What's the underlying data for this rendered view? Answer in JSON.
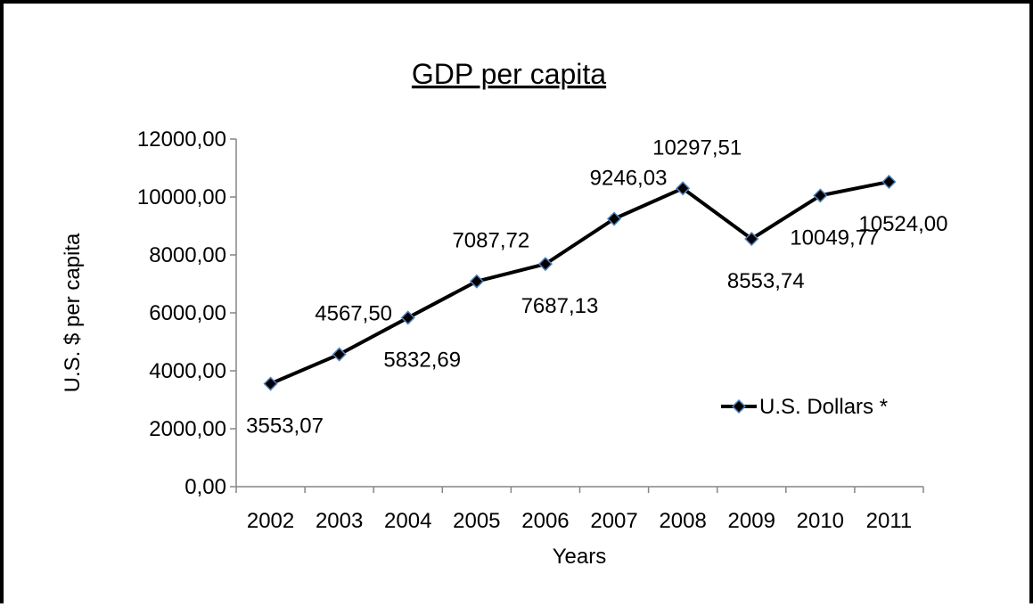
{
  "chart_data": {
    "type": "line",
    "title": "GDP per capita",
    "xlabel": "Years",
    "ylabel": "U.S. $ per capita",
    "categories": [
      "2002",
      "2003",
      "2004",
      "2005",
      "2006",
      "2007",
      "2008",
      "2009",
      "2010",
      "2011"
    ],
    "series": [
      {
        "name": "U.S. Dollars *",
        "values": [
          3553.07,
          4567.5,
          5832.69,
          7087.72,
          7687.13,
          9246.03,
          10297.51,
          8553.74,
          10049.77,
          10524.0
        ],
        "labels": [
          "3553,07",
          "4567,50",
          "5832,69",
          "7087,72",
          "7687,13",
          "9246,03",
          "10297,51",
          "8553,74",
          "10049,77",
          "10524,00"
        ],
        "line_color": "#000000",
        "marker_color": "#000000",
        "marker_edge_color": "#4f81bd",
        "marker": "diamond"
      }
    ],
    "ylim": [
      0,
      12000
    ],
    "yticks": [
      0,
      2000,
      4000,
      6000,
      8000,
      10000,
      12000
    ],
    "ytick_labels": [
      "0,00",
      "2000,00",
      "4000,00",
      "6000,00",
      "8000,00",
      "10000,00",
      "12000,00"
    ],
    "grid": false,
    "legend_position": "right"
  }
}
